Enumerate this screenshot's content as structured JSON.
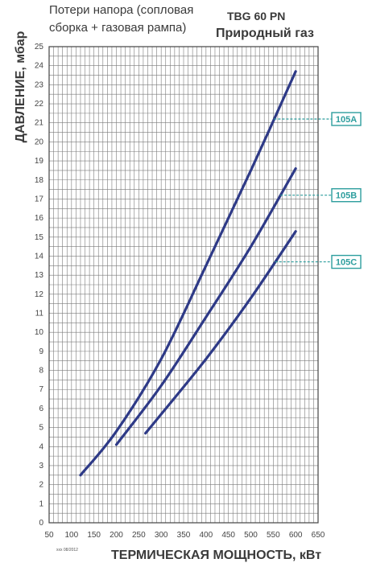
{
  "header": {
    "subtitle_line1": "Потери напора (сопловая",
    "subtitle_line2": "сборка + газовая рампа)",
    "model": "TBG 60 PN",
    "fuel": "Природный газ"
  },
  "footnote": "xxx 08/2012",
  "chart_data": {
    "type": "line",
    "xlabel": "ТЕРМИЧЕСКАЯ МОЩНОСТЬ, кВт",
    "ylabel": "ДАВЛЕНИЕ, мбар",
    "xlim": [
      50,
      650
    ],
    "ylim": [
      0,
      25
    ],
    "x_ticks": [
      50,
      100,
      150,
      200,
      250,
      300,
      350,
      400,
      450,
      500,
      550,
      600,
      650
    ],
    "y_ticks": [
      0,
      1,
      2,
      3,
      4,
      5,
      6,
      7,
      8,
      9,
      10,
      11,
      12,
      13,
      14,
      15,
      16,
      17,
      18,
      19,
      20,
      21,
      22,
      23,
      24,
      25
    ],
    "x_minor_step": 10,
    "y_minor_step": 0.5,
    "grid": true,
    "series": [
      {
        "name": "105A",
        "label_y": 21.2,
        "x": [
          120,
          200,
          300,
          400,
          500,
          600
        ],
        "y": [
          2.5,
          4.8,
          8.6,
          13.5,
          18.5,
          23.7
        ]
      },
      {
        "name": "105B",
        "label_y": 17.2,
        "x": [
          200,
          300,
          400,
          500,
          600
        ],
        "y": [
          4.1,
          7.2,
          10.8,
          14.5,
          18.6
        ]
      },
      {
        "name": "105C",
        "label_y": 13.7,
        "x": [
          265,
          300,
          400,
          500,
          600
        ],
        "y": [
          4.7,
          5.7,
          8.6,
          11.8,
          15.3
        ]
      }
    ],
    "colors": {
      "curve": "#2e3a87",
      "label": "#2e9e9e",
      "grid": "#7a7a7a",
      "axis": "#444444"
    }
  }
}
